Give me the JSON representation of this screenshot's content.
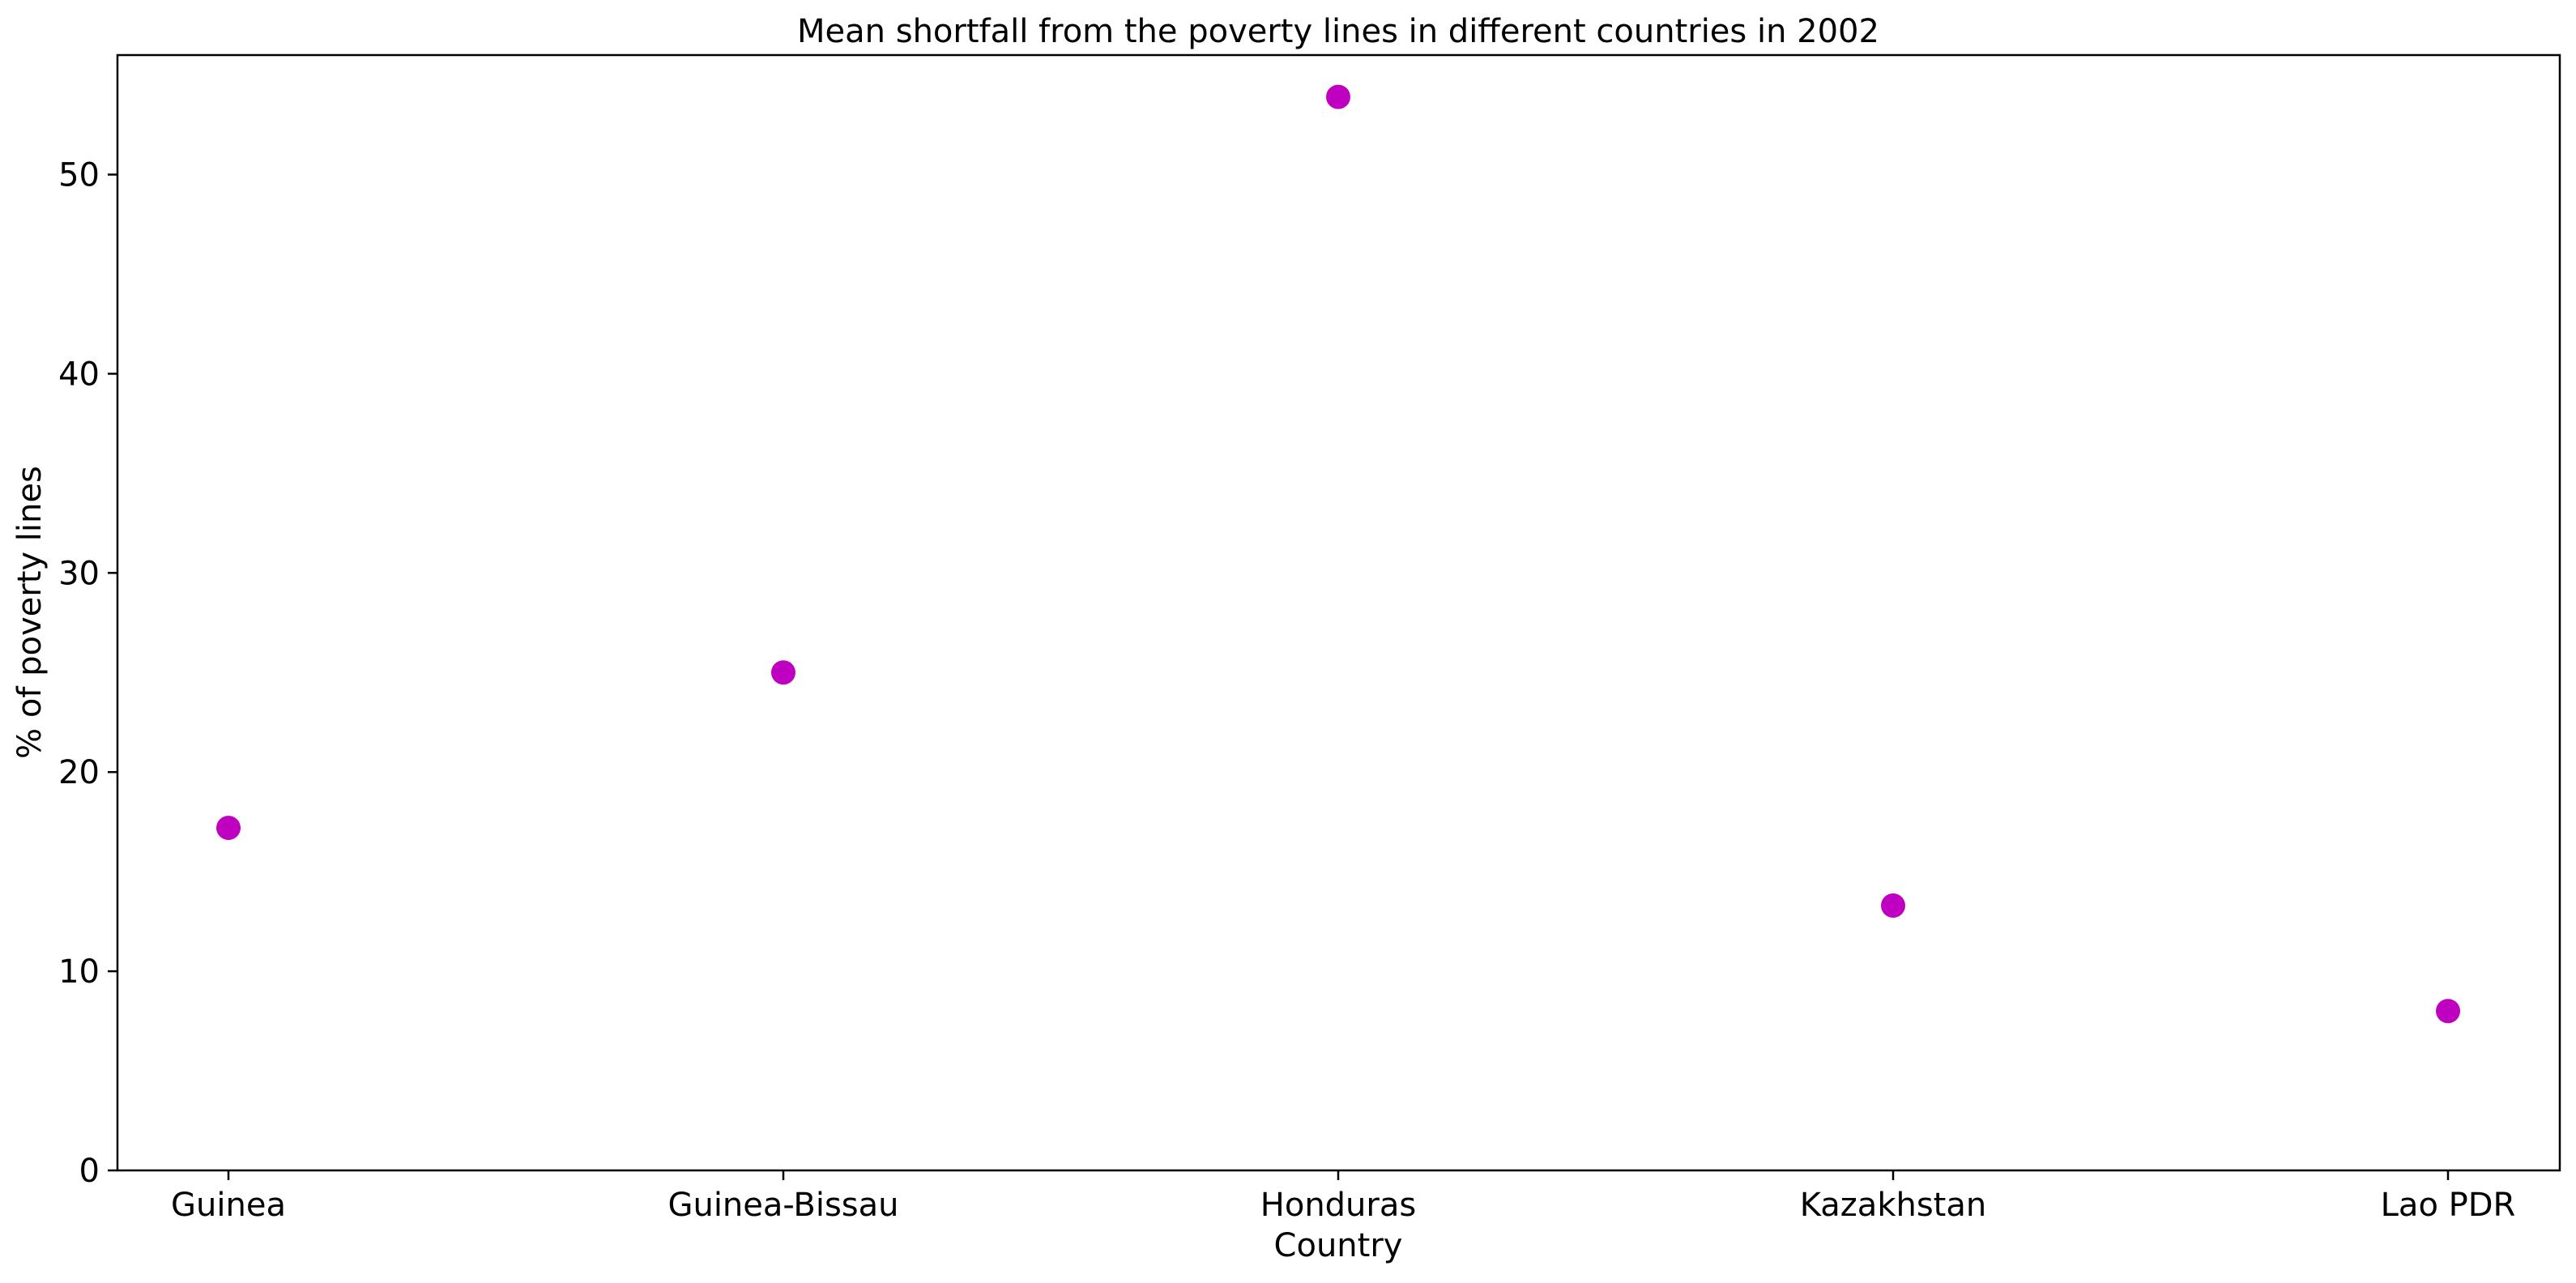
{
  "chart_data": {
    "type": "scatter",
    "title": "Mean shortfall from the poverty lines in different countries in 2002",
    "xlabel": "Country",
    "ylabel": "% of poverty lines",
    "categories": [
      "Guinea",
      "Guinea-Bissau",
      "Honduras",
      "Kazakhstan",
      "Lao PDR"
    ],
    "series": [
      {
        "values": [
          17.2,
          25.0,
          53.9,
          13.3,
          8.0
        ]
      }
    ],
    "ylim": [
      0,
      56
    ],
    "yticks": [
      0,
      10,
      20,
      30,
      40,
      50
    ],
    "grid": false,
    "legend": "none",
    "colors": {
      "marker": "#c000c0",
      "axis": "#000000",
      "background": "#ffffff"
    }
  }
}
